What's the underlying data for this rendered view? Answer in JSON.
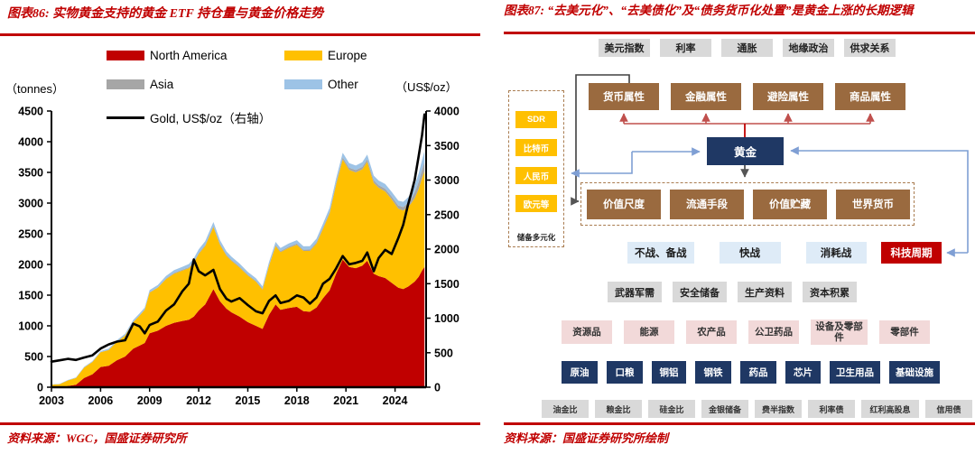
{
  "left": {
    "title": "图表86: 实物黄金支持的黄金 ETF 持仓量与黄金价格走势",
    "source": "资料来源：WGC，国盛证券研究所",
    "axis_left_label": "（tonnes）",
    "axis_right_label": "（US$/oz）",
    "legend": {
      "north_america": "North America",
      "europe": "Europe",
      "asia": "Asia",
      "other": "Other",
      "gold": "Gold, US$/oz（右轴）"
    }
  },
  "chart_data": {
    "type": "area",
    "title": "实物黄金支持的黄金ETF持仓量与黄金价格走势",
    "xlabel": "",
    "ylabel_left": "tonnes",
    "ylabel_right": "US$/oz",
    "x_range": [
      2003,
      2025.9
    ],
    "left_axis": {
      "min": 0,
      "max": 4500,
      "ticks": [
        0,
        500,
        1000,
        1500,
        2000,
        2500,
        3000,
        3500,
        4000,
        4500
      ]
    },
    "right_axis": {
      "min": 0,
      "max": 4000,
      "ticks": [
        0,
        500,
        1000,
        1500,
        2000,
        2500,
        3000,
        3500,
        4000
      ]
    },
    "x_ticks": [
      2003,
      2006,
      2009,
      2012,
      2015,
      2018,
      2021,
      2024
    ],
    "x": [
      2003,
      2003.5,
      2004,
      2004.5,
      2005,
      2005.5,
      2006,
      2006.5,
      2007,
      2007.5,
      2008,
      2008.4,
      2008.7,
      2009,
      2009.5,
      2010,
      2010.5,
      2011,
      2011.4,
      2011.7,
      2012,
      2012.4,
      2012.9,
      2013.3,
      2013.7,
      2014,
      2014.5,
      2015,
      2015.5,
      2015.9,
      2016.3,
      2016.7,
      2017,
      2017.5,
      2018,
      2018.4,
      2018.8,
      2019.2,
      2019.6,
      2020,
      2020.4,
      2020.8,
      2021.2,
      2021.6,
      2022,
      2022.3,
      2022.7,
      2023,
      2023.4,
      2023.8,
      2024.2,
      2024.5,
      2024.8,
      2025,
      2025.2,
      2025.45,
      2025.65,
      2025.8
    ],
    "series": [
      {
        "name": "North America",
        "color": "#C00000",
        "values": [
          0,
          5,
          20,
          40,
          150,
          210,
          330,
          350,
          440,
          500,
          630,
          680,
          720,
          880,
          920,
          1000,
          1050,
          1080,
          1100,
          1150,
          1250,
          1350,
          1600,
          1400,
          1280,
          1220,
          1150,
          1060,
          1000,
          950,
          1180,
          1350,
          1260,
          1290,
          1310,
          1240,
          1230,
          1300,
          1450,
          1580,
          1850,
          2080,
          1960,
          1940,
          1980,
          2060,
          1850,
          1810,
          1780,
          1700,
          1620,
          1600,
          1640,
          1680,
          1720,
          1800,
          1900,
          1960
        ]
      },
      {
        "name": "Europe",
        "color": "#FFC000",
        "values": [
          40,
          45,
          90,
          110,
          170,
          200,
          240,
          255,
          300,
          340,
          430,
          490,
          540,
          660,
          700,
          760,
          800,
          820,
          840,
          880,
          920,
          950,
          1010,
          920,
          860,
          840,
          800,
          760,
          720,
          640,
          800,
          950,
          940,
          980,
          1010,
          980,
          990,
          1040,
          1130,
          1250,
          1450,
          1630,
          1580,
          1560,
          1570,
          1610,
          1480,
          1440,
          1410,
          1360,
          1290,
          1280,
          1300,
          1320,
          1360,
          1430,
          1510,
          1560
        ]
      },
      {
        "name": "Asia",
        "color": "#A6A6A6",
        "values": [
          0,
          0,
          0,
          1,
          2,
          3,
          4,
          5,
          6,
          7,
          8,
          8,
          9,
          10,
          10,
          12,
          13,
          14,
          15,
          16,
          17,
          18,
          19,
          18,
          17,
          17,
          16,
          15,
          15,
          14,
          16,
          18,
          19,
          20,
          21,
          21,
          22,
          23,
          25,
          28,
          32,
          35,
          37,
          38,
          40,
          42,
          42,
          43,
          44,
          46,
          50,
          55,
          62,
          75,
          90,
          115,
          135,
          150
        ]
      },
      {
        "name": "Other",
        "color": "#9DC3E6",
        "values": [
          5,
          6,
          8,
          9,
          10,
          12,
          15,
          18,
          20,
          24,
          28,
          30,
          30,
          32,
          35,
          40,
          45,
          48,
          52,
          55,
          58,
          60,
          62,
          58,
          55,
          52,
          48,
          45,
          42,
          40,
          45,
          50,
          50,
          52,
          55,
          54,
          55,
          57,
          60,
          64,
          70,
          75,
          74,
          74,
          76,
          78,
          75,
          75,
          76,
          77,
          80,
          85,
          92,
          100,
          115,
          140,
          160,
          175
        ]
      }
    ],
    "line": {
      "name": "Gold, US$/oz（右轴）",
      "color": "#000000",
      "axis": "right",
      "values": [
        370,
        390,
        410,
        395,
        430,
        460,
        560,
        620,
        660,
        680,
        920,
        880,
        780,
        900,
        950,
        1110,
        1200,
        1390,
        1500,
        1850,
        1680,
        1620,
        1700,
        1420,
        1280,
        1240,
        1290,
        1190,
        1100,
        1070,
        1250,
        1330,
        1220,
        1250,
        1330,
        1300,
        1210,
        1300,
        1500,
        1570,
        1720,
        1900,
        1780,
        1800,
        1830,
        1950,
        1680,
        1870,
        1990,
        1930,
        2160,
        2350,
        2650,
        2820,
        3000,
        3350,
        3650,
        3950
      ]
    }
  },
  "right": {
    "title": "图表87: “去美元化”、“去美债化”及“债务货币化处置”是黄金上涨的长期逻辑",
    "source": "资料来源：国盛证券研究所绘制",
    "diagram": {
      "factors": [
        "美元指数",
        "利率",
        "通胀",
        "地缘政治",
        "供求关系"
      ],
      "attributes": [
        "货币属性",
        "金融属性",
        "避险属性",
        "商品属性"
      ],
      "gold": "黄金",
      "reserve_alternatives": [
        "SDR",
        "比特币",
        "人民币",
        "欧元等"
      ],
      "reserve_label": "储备多元化",
      "functions": [
        "价值尺度",
        "流通手段",
        "价值贮藏",
        "世界货币"
      ],
      "war_stages": [
        "不战、备战",
        "快战",
        "消耗战"
      ],
      "tech_cycle": "科技周期",
      "war_needs": [
        "武器军需",
        "安全储备",
        "生产资料",
        "资本积累"
      ],
      "categories": [
        "资源品",
        "能源",
        "农产品",
        "公卫药品",
        "设备及零部件",
        "零部件"
      ],
      "commodities": [
        "原油",
        "口粮",
        "铜铝",
        "钢铁",
        "药品",
        "芯片",
        "卫生用品",
        "基础设施"
      ],
      "indicators": [
        "油金比",
        "粮金比",
        "硅金比",
        "金银储备",
        "费半指数",
        "利率债",
        "红利高股息",
        "信用债"
      ]
    }
  },
  "colors": {
    "accent_red": "#C00000",
    "europe_yellow": "#FFC000",
    "asia_gray": "#A6A6A6",
    "other_blue": "#9DC3E6",
    "navy": "#1F3864",
    "brown_box": "#9A6A3F",
    "gray_box": "#D9D9D9",
    "lightblue_box": "#DEEBF7",
    "pink_box": "#F2D9D9",
    "connector_blue": "#7F9FD4",
    "connector_pink": "#C0504D"
  }
}
